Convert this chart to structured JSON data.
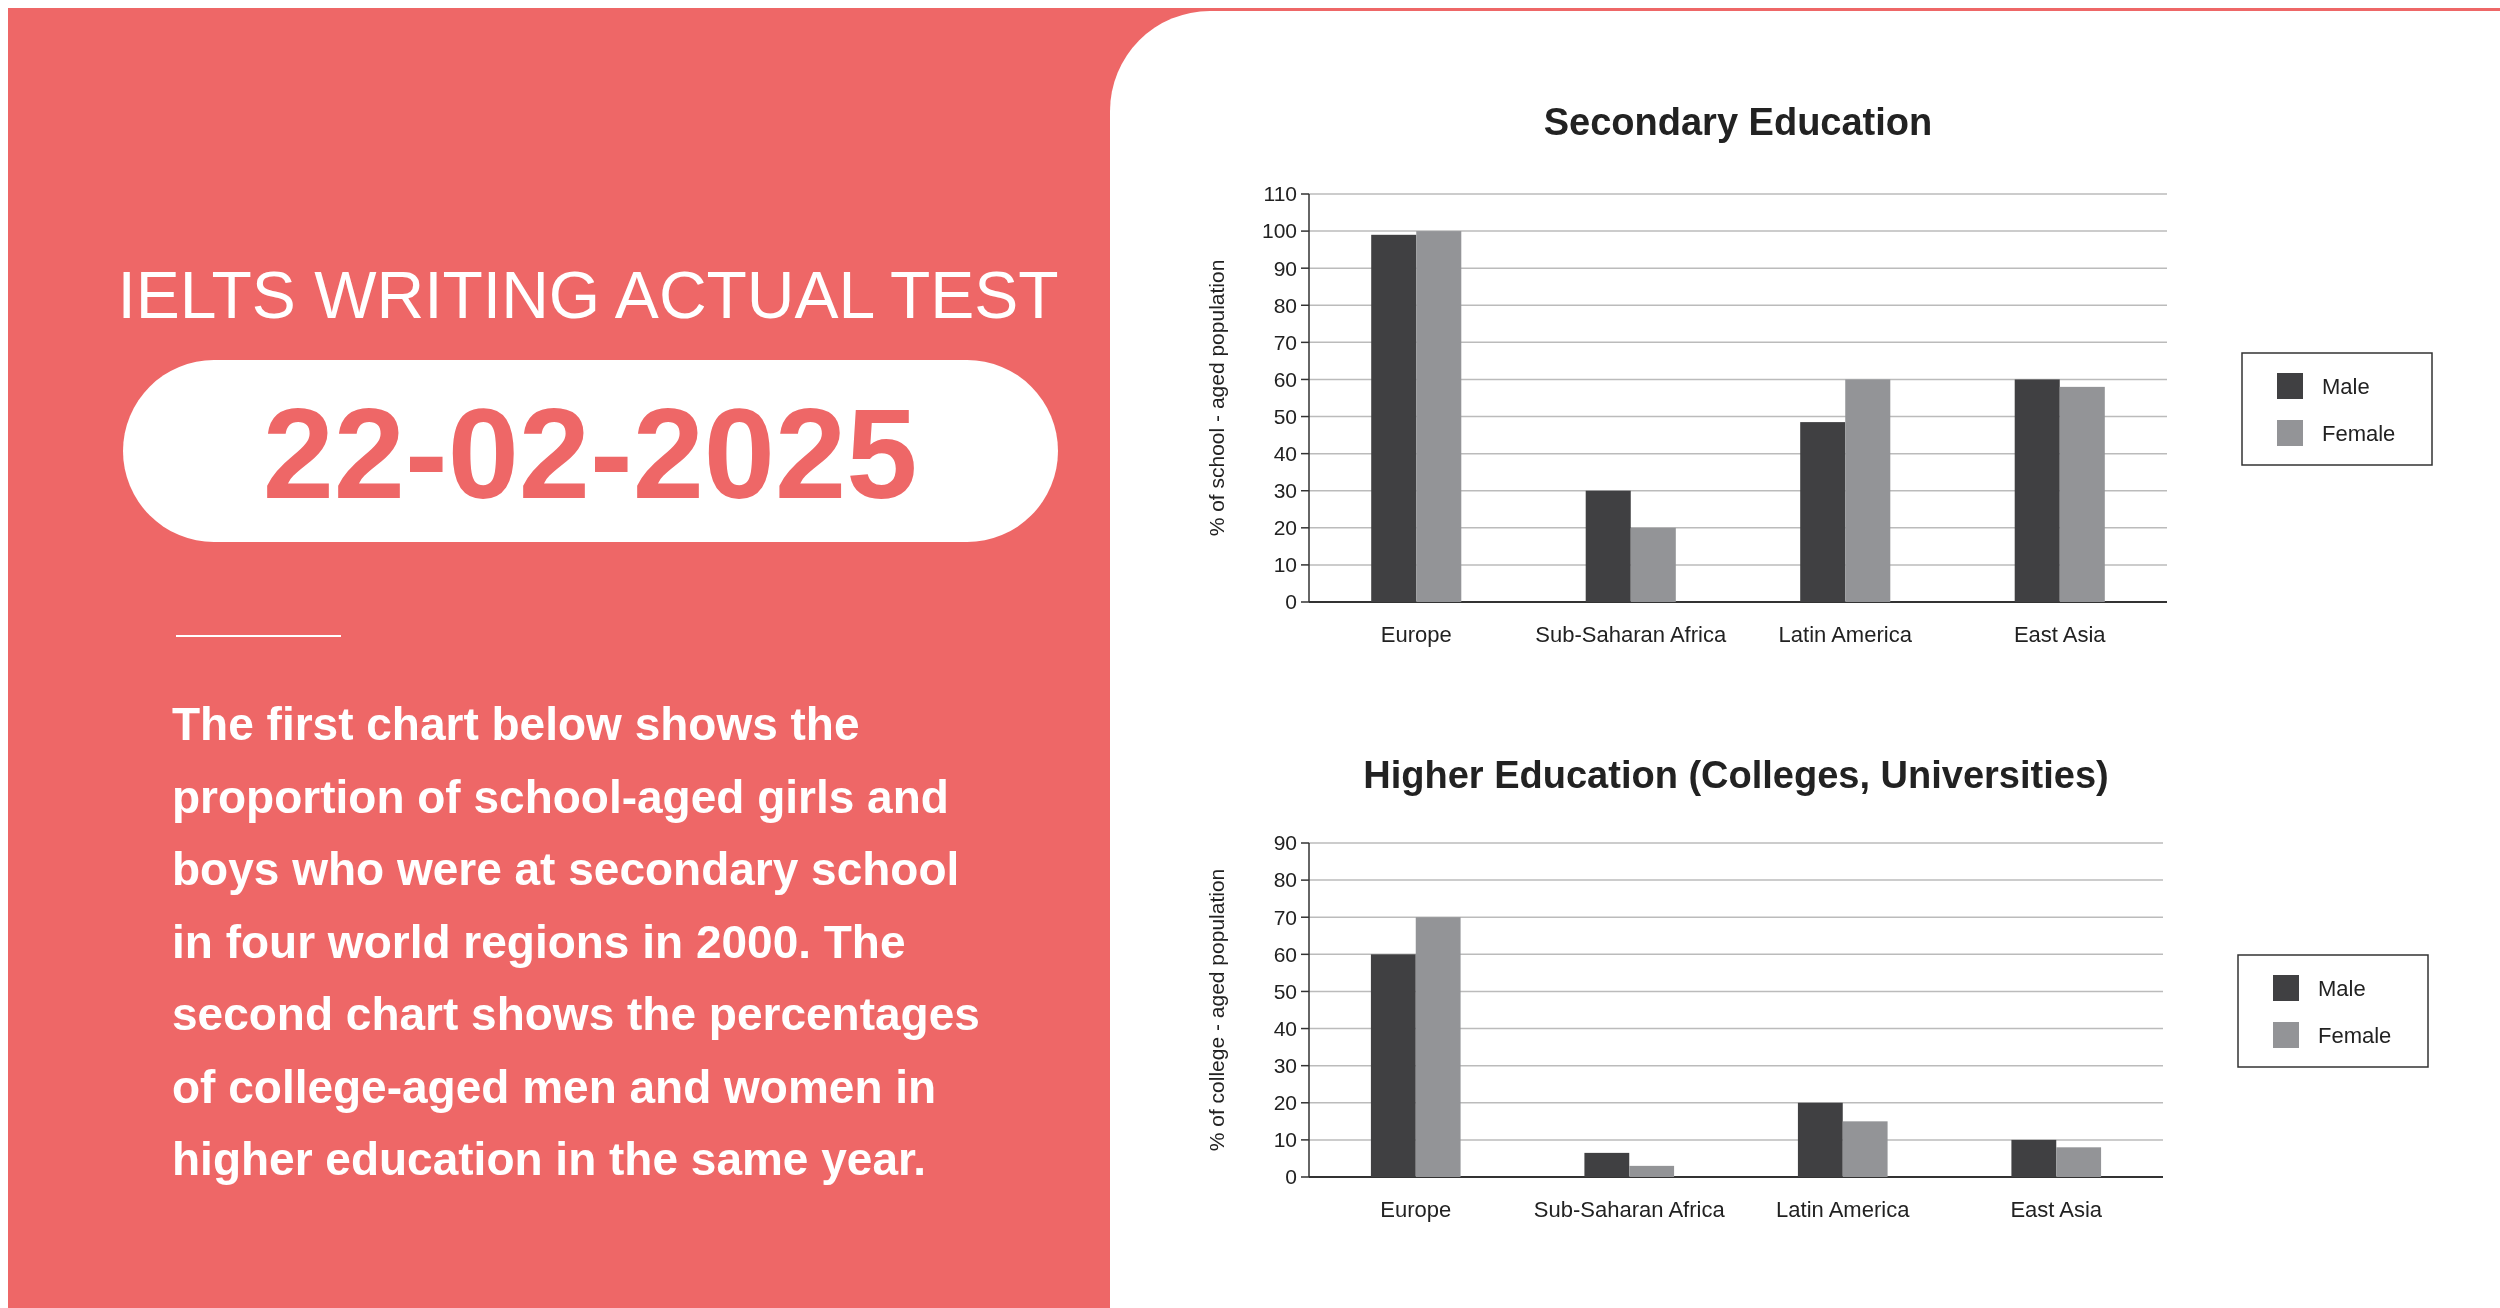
{
  "chart_data": [
    {
      "type": "other",
      "title": "IELTS WRITING ACTUAL TEST",
      "subtitle": "22-02-2025",
      "annotations": [
        "The first chart below shows the proportion of school-aged girls and boys who were at secondary school in four world regions in 2000. The second chart shows the percentages of college-aged men and women in higher education in the same year."
      ]
    },
    {
      "type": "bar",
      "title": "Secondary Education",
      "ylabel": "% of school - aged population",
      "categories": [
        "Europe",
        "Sub-Saharan Africa",
        "Latin America",
        "East Asia"
      ],
      "series": [
        {
          "name": "Male",
          "color": "#404042",
          "values": [
            99,
            30,
            48.5,
            60
          ]
        },
        {
          "name": "Female",
          "color": "#939497",
          "values": [
            100,
            20,
            60,
            58
          ]
        }
      ],
      "ylim": [
        0,
        110
      ],
      "yticks": [
        0,
        10,
        20,
        30,
        40,
        50,
        60,
        70,
        80,
        90,
        100,
        110
      ],
      "grid": "y",
      "legend": "right"
    },
    {
      "type": "bar",
      "title": "Higher Education (Colleges, Universities)",
      "ylabel": "% of college - aged population",
      "categories": [
        "Europe",
        "Sub-Saharan Africa",
        "Latin America",
        "East Asia"
      ],
      "series": [
        {
          "name": "Male",
          "color": "#404042",
          "values": [
            60,
            6.5,
            20,
            10
          ]
        },
        {
          "name": "Female",
          "color": "#939497",
          "values": [
            70,
            3,
            15,
            8
          ]
        }
      ],
      "ylim": [
        0,
        90
      ],
      "yticks": [
        0,
        10,
        20,
        30,
        40,
        50,
        60,
        70,
        80,
        90
      ],
      "grid": "y",
      "legend": "right"
    }
  ]
}
